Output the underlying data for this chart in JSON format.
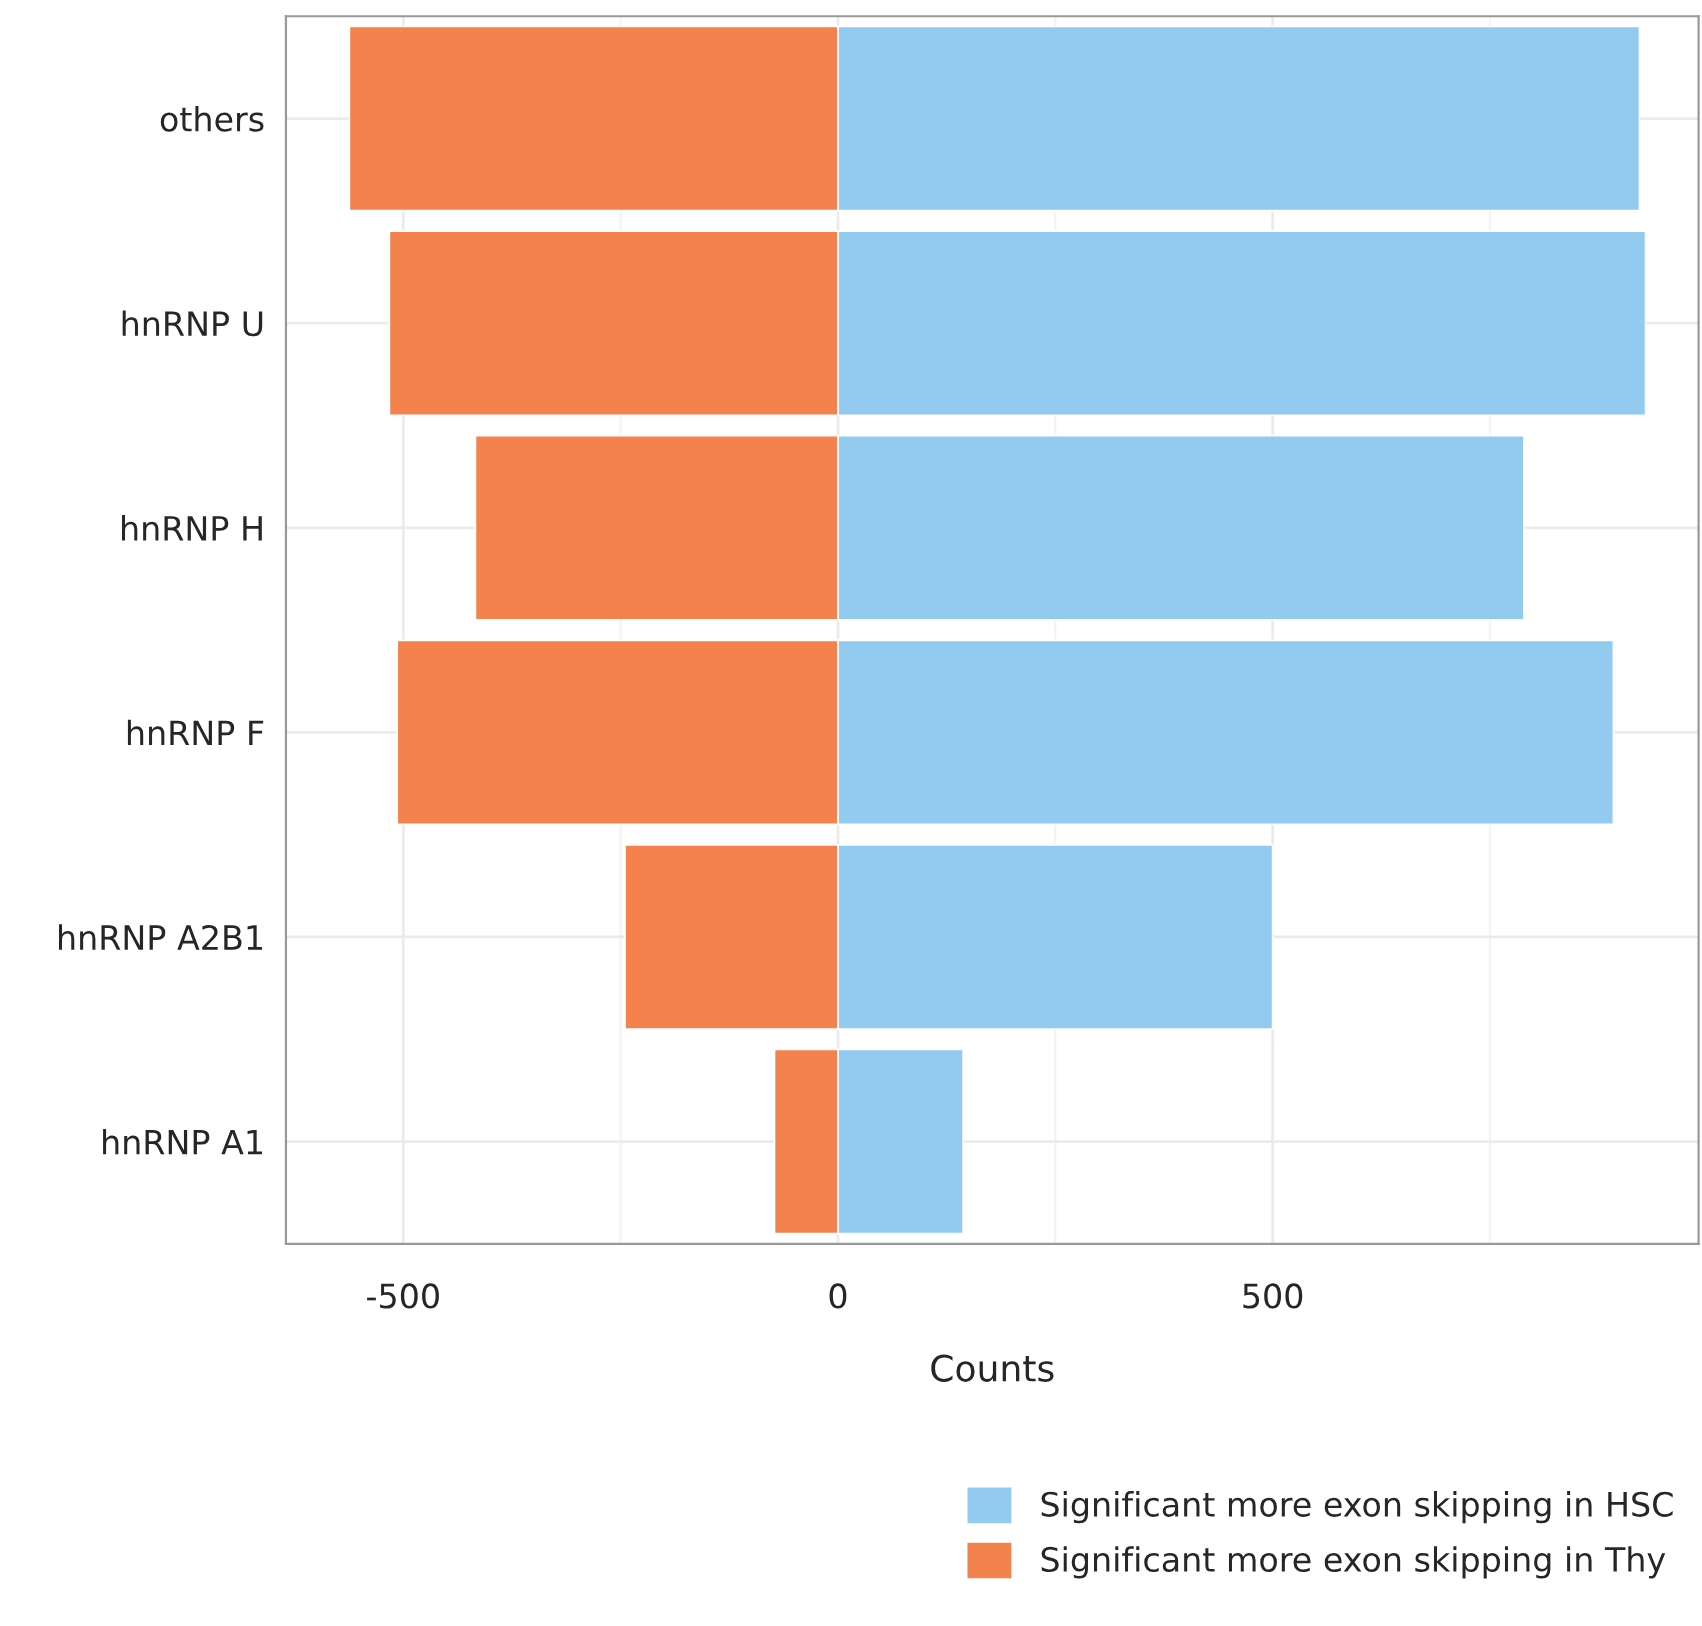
{
  "chart_data": {
    "type": "bar",
    "orientation": "horizontal",
    "stacked": true,
    "xlabel": "Counts",
    "categories": [
      "others",
      "hnRNP U",
      "hnRNP H",
      "hnRNP F",
      "hnRNP A2B1",
      "hnRNP A1"
    ],
    "series": [
      {
        "name": "Significant more exon skipping in HSC",
        "color": "#92cbef",
        "values": [
          922,
          929,
          789,
          892,
          500,
          144
        ]
      },
      {
        "name": "Significant more exon skipping in Thy",
        "color": "#f3824c",
        "values": [
          -562,
          -516,
          -417,
          -507,
          -245,
          -73
        ]
      }
    ],
    "xlim": [
      -635,
      990
    ],
    "xticks": [
      -500,
      0,
      500
    ],
    "grid": true,
    "legend": "bottom right"
  }
}
